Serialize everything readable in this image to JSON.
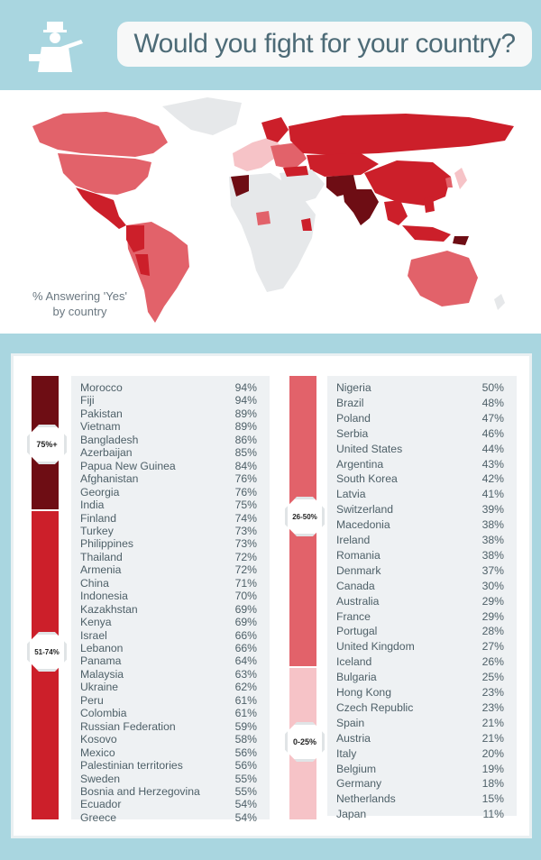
{
  "header": {
    "title": "Would you fight for your country?"
  },
  "map": {
    "caption_line1": "% Answering 'Yes'",
    "caption_line2": "by country"
  },
  "groups": {
    "g75": {
      "label": "75%+",
      "color": "#6e0d14"
    },
    "g51": {
      "label": "51-74%",
      "color": "#cc1f2a"
    },
    "g26": {
      "label": "26-50%",
      "color": "#e2626a"
    },
    "g0": {
      "label": "0-25%",
      "color": "#f6c3c7"
    }
  },
  "left_list": [
    {
      "country": "Morocco",
      "pct": "94%"
    },
    {
      "country": "Fiji",
      "pct": "94%"
    },
    {
      "country": "Pakistan",
      "pct": "89%"
    },
    {
      "country": "Vietnam",
      "pct": "89%"
    },
    {
      "country": "Bangladesh",
      "pct": "86%"
    },
    {
      "country": "Azerbaijan",
      "pct": "85%"
    },
    {
      "country": "Papua New Guinea",
      "pct": "84%"
    },
    {
      "country": "Afghanistan",
      "pct": "76%"
    },
    {
      "country": "Georgia",
      "pct": "76%"
    },
    {
      "country": "India",
      "pct": "75%"
    },
    {
      "country": "Finland",
      "pct": "74%"
    },
    {
      "country": "Turkey",
      "pct": "73%"
    },
    {
      "country": "Philippines",
      "pct": "73%"
    },
    {
      "country": "Thailand",
      "pct": "72%"
    },
    {
      "country": "Armenia",
      "pct": "72%"
    },
    {
      "country": "China",
      "pct": "71%"
    },
    {
      "country": "Indonesia",
      "pct": "70%"
    },
    {
      "country": "Kazakhstan",
      "pct": "69%"
    },
    {
      "country": "Kenya",
      "pct": "69%"
    },
    {
      "country": "Israel",
      "pct": "66%"
    },
    {
      "country": "Lebanon",
      "pct": "66%"
    },
    {
      "country": "Panama",
      "pct": "64%"
    },
    {
      "country": "Malaysia",
      "pct": "63%"
    },
    {
      "country": "Ukraine",
      "pct": "62%"
    },
    {
      "country": "Peru",
      "pct": "61%"
    },
    {
      "country": "Colombia",
      "pct": "61%"
    },
    {
      "country": "Russian Federation",
      "pct": "59%"
    },
    {
      "country": "Kosovo",
      "pct": "58%"
    },
    {
      "country": "Mexico",
      "pct": "56%"
    },
    {
      "country": "Palestinian territories",
      "pct": "56%"
    },
    {
      "country": "Sweden",
      "pct": "55%"
    },
    {
      "country": "Bosnia and Herzegovina",
      "pct": "55%"
    },
    {
      "country": "Ecuador",
      "pct": "54%"
    },
    {
      "country": "Greece",
      "pct": "54%"
    }
  ],
  "right_list": [
    {
      "country": "Nigeria",
      "pct": "50%"
    },
    {
      "country": "Brazil",
      "pct": "48%"
    },
    {
      "country": "Poland",
      "pct": "47%"
    },
    {
      "country": "Serbia",
      "pct": "46%"
    },
    {
      "country": "United States",
      "pct": "44%"
    },
    {
      "country": "Argentina",
      "pct": "43%"
    },
    {
      "country": "South Korea",
      "pct": "42%"
    },
    {
      "country": "Latvia",
      "pct": "41%"
    },
    {
      "country": "Switzerland",
      "pct": "39%"
    },
    {
      "country": "Macedonia",
      "pct": "38%"
    },
    {
      "country": "Ireland",
      "pct": "38%"
    },
    {
      "country": "Romania",
      "pct": "38%"
    },
    {
      "country": "Denmark",
      "pct": "37%"
    },
    {
      "country": "Canada",
      "pct": "30%"
    },
    {
      "country": "Australia",
      "pct": "29%"
    },
    {
      "country": "France",
      "pct": "29%"
    },
    {
      "country": "Portugal",
      "pct": "28%"
    },
    {
      "country": "United Kingdom",
      "pct": "27%"
    },
    {
      "country": "Iceland",
      "pct": "26%"
    },
    {
      "country": "Bulgaria",
      "pct": "25%"
    },
    {
      "country": "Hong Kong",
      "pct": "23%"
    },
    {
      "country": "Czech Republic",
      "pct": "23%"
    },
    {
      "country": "Spain",
      "pct": "21%"
    },
    {
      "country": "Austria",
      "pct": "21%"
    },
    {
      "country": "Italy",
      "pct": "20%"
    },
    {
      "country": "Belgium",
      "pct": "19%"
    },
    {
      "country": "Germany",
      "pct": "18%"
    },
    {
      "country": "Netherlands",
      "pct": "15%"
    },
    {
      "country": "Japan",
      "pct": "11%"
    }
  ]
}
